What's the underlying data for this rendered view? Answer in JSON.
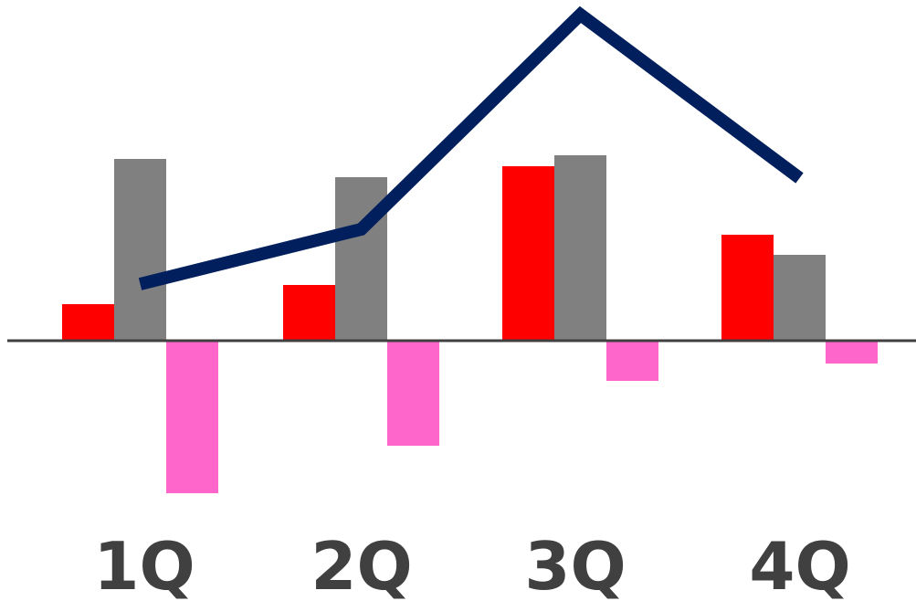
{
  "chart_data": {
    "type": "bar",
    "categories": [
      "1Q",
      "2Q",
      "3Q",
      "4Q"
    ],
    "series": [
      {
        "kind": "bar",
        "color": "#ff0000",
        "values": [
          40,
          61,
          191,
          116
        ]
      },
      {
        "kind": "bar",
        "color": "#808080",
        "values": [
          199,
          179,
          203,
          94
        ]
      },
      {
        "kind": "bar",
        "color": "#ff66cc",
        "values": [
          -167,
          -115,
          -44,
          -25
        ]
      },
      {
        "kind": "line",
        "color": "#001f5c",
        "values": [
          62,
          122,
          357,
          178
        ]
      }
    ],
    "ylim": [
      -185,
      360
    ],
    "grid": false,
    "legend": "none",
    "axis_color": "#404040"
  }
}
